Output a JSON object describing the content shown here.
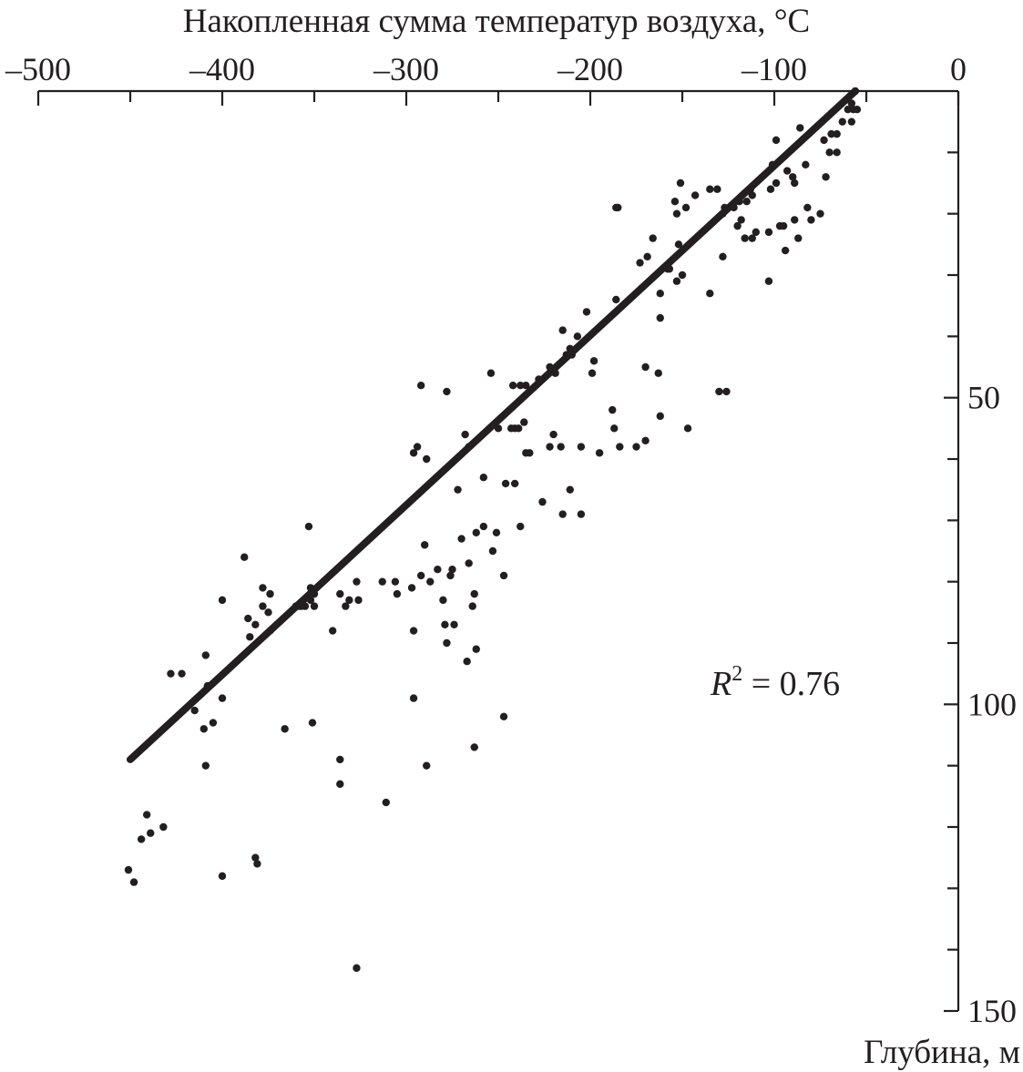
{
  "chart_data": {
    "type": "scatter",
    "title": "",
    "xlabel": "Накопленная сумма температур воздуха, °C",
    "ylabel": "Глубина, м",
    "xlim": [
      -500,
      0
    ],
    "ylim": [
      0,
      150
    ],
    "x_axis_position": "top",
    "y_axis_position": "right",
    "y_inverted": true,
    "grid": false,
    "x_ticks": [
      -500,
      -450,
      -400,
      -350,
      -300,
      -250,
      -200,
      -150,
      -100,
      -50,
      0
    ],
    "x_tick_labels": [
      "–500",
      "",
      "–400",
      "",
      "–300",
      "",
      "–200",
      "",
      "–100",
      "",
      "0"
    ],
    "y_ticks": [
      10,
      20,
      30,
      40,
      50,
      60,
      70,
      80,
      90,
      100,
      110,
      120,
      130,
      140,
      150
    ],
    "y_tick_labels": [
      "",
      "",
      "",
      "",
      "50",
      "",
      "",
      "",
      "",
      "100",
      "",
      "",
      "",
      "",
      "150"
    ],
    "annotation": {
      "prefix": "R",
      "superscript": "2",
      "suffix": " = 0.76"
    },
    "trend_line": {
      "x": [
        -450,
        -56
      ],
      "y": [
        109,
        0
      ]
    },
    "points": [
      [
        -56,
        0
      ],
      [
        -58,
        2
      ],
      [
        -57,
        3
      ],
      [
        -55,
        3
      ],
      [
        -60,
        3
      ],
      [
        -63,
        5
      ],
      [
        -58,
        5
      ],
      [
        -66,
        7
      ],
      [
        -69,
        7
      ],
      [
        -73,
        8
      ],
      [
        -86,
        6
      ],
      [
        -99,
        8
      ],
      [
        -83,
        12
      ],
      [
        -101,
        12
      ],
      [
        -93,
        13
      ],
      [
        -90,
        14
      ],
      [
        -72,
        14
      ],
      [
        -66,
        10
      ],
      [
        -70,
        10
      ],
      [
        -89,
        15
      ],
      [
        -99,
        15
      ],
      [
        -102,
        16
      ],
      [
        -113,
        16
      ],
      [
        -112,
        17
      ],
      [
        -115,
        18
      ],
      [
        -119,
        18
      ],
      [
        -127,
        19
      ],
      [
        -131,
        16
      ],
      [
        -135,
        16
      ],
      [
        -143,
        17
      ],
      [
        -151,
        15
      ],
      [
        -154,
        18
      ],
      [
        -148,
        19
      ],
      [
        -153,
        20
      ],
      [
        -122,
        19
      ],
      [
        -128,
        20
      ],
      [
        -118,
        21
      ],
      [
        -82,
        19
      ],
      [
        -75,
        20
      ],
      [
        -80,
        21
      ],
      [
        -89,
        21
      ],
      [
        -95,
        22
      ],
      [
        -103,
        23
      ],
      [
        -110,
        23
      ],
      [
        -112,
        24
      ],
      [
        -116,
        24
      ],
      [
        -120,
        22
      ],
      [
        -97,
        22
      ],
      [
        -87,
        24
      ],
      [
        -94,
        26
      ],
      [
        -103,
        31
      ],
      [
        -128,
        27
      ],
      [
        -185,
        19
      ],
      [
        -186,
        19
      ],
      [
        -166,
        24
      ],
      [
        -169,
        27
      ],
      [
        -173,
        28
      ],
      [
        -152,
        25
      ],
      [
        -158,
        29
      ],
      [
        -153,
        31
      ],
      [
        -150,
        30
      ],
      [
        -157,
        29
      ],
      [
        -162,
        33
      ],
      [
        -135,
        33
      ],
      [
        -186,
        34
      ],
      [
        -202,
        36
      ],
      [
        -162,
        37
      ],
      [
        -215,
        39
      ],
      [
        -207,
        40
      ],
      [
        -211,
        42
      ],
      [
        -222,
        45
      ],
      [
        -199,
        46
      ],
      [
        -219,
        46
      ],
      [
        -213,
        43
      ],
      [
        -198,
        44
      ],
      [
        -235,
        48
      ],
      [
        -228,
        47
      ],
      [
        -241,
        55
      ],
      [
        -239,
        55
      ],
      [
        -250,
        55
      ],
      [
        -254,
        46
      ],
      [
        -243,
        55
      ],
      [
        -236,
        54
      ],
      [
        -268,
        56
      ],
      [
        -266,
        58
      ],
      [
        -292,
        48
      ],
      [
        -278,
        49
      ],
      [
        -210,
        43
      ],
      [
        -163,
        46
      ],
      [
        -170,
        45
      ],
      [
        -162,
        53
      ],
      [
        -170,
        57
      ],
      [
        -188,
        52
      ],
      [
        -175,
        58
      ],
      [
        -195,
        59
      ],
      [
        -205,
        58
      ],
      [
        -222,
        58
      ],
      [
        -220,
        56
      ],
      [
        -216,
        58
      ],
      [
        -187,
        55
      ],
      [
        -184,
        58
      ],
      [
        -147,
        55
      ],
      [
        -126,
        49
      ],
      [
        -130,
        49
      ],
      [
        -238,
        48
      ],
      [
        -242,
        48
      ],
      [
        -294,
        58
      ],
      [
        -296,
        59
      ],
      [
        -289,
        60
      ],
      [
        -241,
        64
      ],
      [
        -246,
        64
      ],
      [
        -258,
        63
      ],
      [
        -272,
        65
      ],
      [
        -258,
        71
      ],
      [
        -270,
        73
      ],
      [
        -275,
        78
      ],
      [
        -290,
        74
      ],
      [
        -253,
        75
      ],
      [
        -247,
        79
      ],
      [
        -262,
        72
      ],
      [
        -233,
        59
      ],
      [
        -235,
        59
      ],
      [
        -211,
        65
      ],
      [
        -226,
        67
      ],
      [
        -205,
        69
      ],
      [
        -215,
        69
      ],
      [
        -238,
        71
      ],
      [
        -251,
        72
      ],
      [
        -266,
        77
      ],
      [
        -280,
        83
      ],
      [
        -264,
        84
      ],
      [
        -292,
        79
      ],
      [
        -305,
        82
      ],
      [
        -306,
        80
      ],
      [
        -274,
        87
      ],
      [
        -278,
        90
      ],
      [
        -279,
        87
      ],
      [
        -267,
        93
      ],
      [
        -262,
        91
      ],
      [
        -263,
        82
      ],
      [
        -276,
        79
      ],
      [
        -283,
        78
      ],
      [
        -287,
        80
      ],
      [
        -297,
        81
      ],
      [
        -313,
        80
      ],
      [
        -326,
        83
      ],
      [
        -331,
        83
      ],
      [
        -327,
        80
      ],
      [
        -336,
        82
      ],
      [
        -333,
        84
      ],
      [
        -296,
        88
      ],
      [
        -350,
        84
      ],
      [
        -355,
        84
      ],
      [
        -358,
        84
      ],
      [
        -352,
        81
      ],
      [
        -350,
        82
      ],
      [
        -352,
        83
      ],
      [
        -357,
        84
      ],
      [
        -360,
        84
      ],
      [
        -378,
        84
      ],
      [
        -375,
        85
      ],
      [
        -374,
        82
      ],
      [
        -378,
        81
      ],
      [
        -382,
        87
      ],
      [
        -386,
        86
      ],
      [
        -400,
        83
      ],
      [
        -353,
        71
      ],
      [
        -388,
        76
      ],
      [
        -340,
        88
      ],
      [
        -366,
        104
      ],
      [
        -351,
        103
      ],
      [
        -296,
        99
      ],
      [
        -247,
        102
      ],
      [
        -263,
        107
      ],
      [
        -289,
        110
      ],
      [
        -311,
        116
      ],
      [
        -336,
        109
      ],
      [
        -336,
        113
      ],
      [
        -422,
        95
      ],
      [
        -428,
        95
      ],
      [
        -405,
        103
      ],
      [
        -409,
        110
      ],
      [
        -441,
        118
      ],
      [
        -444,
        122
      ],
      [
        -451,
        127
      ],
      [
        -448,
        129
      ],
      [
        -400,
        128
      ],
      [
        -382,
        125
      ],
      [
        -381,
        126
      ],
      [
        -432,
        120
      ],
      [
        -439,
        121
      ],
      [
        -327,
        143
      ],
      [
        -408,
        97
      ],
      [
        -400,
        99
      ],
      [
        -410,
        104
      ],
      [
        -415,
        101
      ],
      [
        -409,
        92
      ],
      [
        -385,
        89
      ],
      [
        -374,
        88
      ]
    ]
  }
}
